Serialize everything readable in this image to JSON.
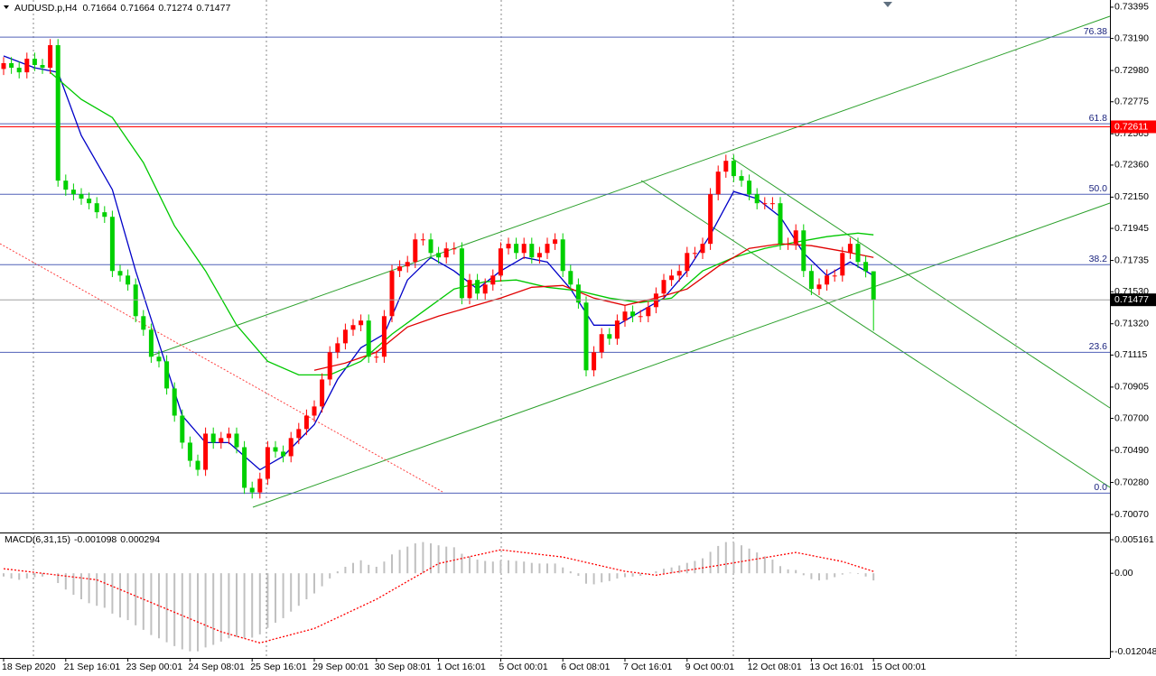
{
  "chart_data": [
    {
      "type": "candlestick",
      "title": "AUDUSD.p,H4",
      "categories": [
        "18 Sep 2020",
        null,
        null,
        null,
        null,
        null,
        null,
        null,
        "21 Sep 16:01",
        null,
        null,
        null,
        null,
        null,
        null,
        null,
        "23 Sep 00:01",
        null,
        null,
        null,
        null,
        null,
        null,
        null,
        "24 Sep 08:01",
        null,
        null,
        null,
        null,
        null,
        null,
        null,
        "25 Sep 16:01",
        null,
        null,
        null,
        null,
        null,
        null,
        null,
        "29 Sep 00:01",
        null,
        null,
        null,
        null,
        null,
        null,
        null,
        "30 Sep 08:01",
        null,
        null,
        null,
        null,
        null,
        null,
        null,
        "1 Oct 16:01",
        null,
        null,
        null,
        null,
        null,
        null,
        null,
        "5 Oct 00:01",
        null,
        null,
        null,
        null,
        null,
        null,
        null,
        "6 Oct 08:01",
        null,
        null,
        null,
        null,
        null,
        null,
        null,
        "7 Oct 16:01",
        null,
        null,
        null,
        null,
        null,
        null,
        null,
        "9 Oct 00:01",
        null,
        null,
        null,
        null,
        null,
        null,
        null,
        "12 Oct 08:01",
        null,
        null,
        null,
        null,
        null,
        null,
        null,
        "13 Oct 16:01",
        null,
        null,
        null,
        null,
        null,
        null,
        null,
        "15 Oct 00:01"
      ],
      "open": [
        0.7299,
        0.73028,
        0.72998,
        0.72968,
        0.73057,
        0.73016,
        0.72998,
        0.73146,
        0.72258,
        0.72199,
        0.72169,
        0.7214,
        0.7211,
        0.72051,
        0.72021,
        0.71666,
        0.71636,
        0.71577,
        0.7137,
        0.71281,
        0.71104,
        0.71074,
        0.70896,
        0.70718,
        0.70541,
        0.70422,
        0.70363,
        0.706,
        0.70541,
        0.70571,
        0.706,
        0.70511,
        0.70245,
        0.70215,
        0.70304,
        0.70511,
        0.70482,
        0.70452,
        0.70571,
        0.7063,
        0.70718,
        0.70778,
        0.70955,
        0.71133,
        0.71192,
        0.71281,
        0.71311,
        0.71341,
        0.71104,
        0.71104,
        0.7137,
        0.71666,
        0.71696,
        0.71725,
        0.71873,
        0.71873,
        0.71784,
        0.71755,
        0.71814,
        0.71814,
        0.71488,
        0.71607,
        0.71518,
        0.71577,
        0.71636,
        0.71814,
        0.71844,
        0.71784,
        0.71844,
        0.71755,
        0.71784,
        0.71844,
        0.71873,
        0.71666,
        0.71577,
        0.71459,
        0.71015,
        0.71133,
        0.71252,
        0.71222,
        0.71341,
        0.714,
        0.7137,
        0.7137,
        0.71429,
        0.71518,
        0.71607,
        0.71636,
        0.71666,
        0.71784,
        0.71784,
        0.71844,
        0.72169,
        0.72317,
        0.72388,
        0.72288,
        0.72258,
        0.72169,
        0.7211,
        0.7211,
        0.7211,
        0.71844,
        0.71844,
        0.71932,
        0.71666,
        0.71548,
        0.71577,
        0.71636,
        0.71636,
        0.71784,
        0.71844,
        0.71725,
        0.71664
      ],
      "high": [
        0.73068,
        0.73068,
        0.73038,
        0.73097,
        0.73097,
        0.73056,
        0.73186,
        0.73186,
        0.72298,
        0.72239,
        0.72209,
        0.7218,
        0.7215,
        0.72091,
        0.72061,
        0.71706,
        0.71676,
        0.71617,
        0.7141,
        0.71321,
        0.71144,
        0.71114,
        0.70936,
        0.70758,
        0.70581,
        0.70462,
        0.7064,
        0.7064,
        0.70611,
        0.7064,
        0.7064,
        0.70551,
        0.70285,
        0.70344,
        0.70551,
        0.70551,
        0.70522,
        0.70611,
        0.7067,
        0.70758,
        0.70818,
        0.70995,
        0.71173,
        0.71232,
        0.71321,
        0.71351,
        0.71381,
        0.71381,
        0.71144,
        0.7141,
        0.71706,
        0.71736,
        0.71765,
        0.71913,
        0.71913,
        0.71913,
        0.71824,
        0.71854,
        0.71854,
        0.71854,
        0.71647,
        0.71647,
        0.71617,
        0.71676,
        0.71854,
        0.71884,
        0.71884,
        0.71884,
        0.71884,
        0.71824,
        0.71884,
        0.71913,
        0.71913,
        0.71706,
        0.71617,
        0.71499,
        0.71173,
        0.71292,
        0.71292,
        0.71381,
        0.7144,
        0.7144,
        0.7141,
        0.71469,
        0.71558,
        0.71647,
        0.71676,
        0.71706,
        0.71824,
        0.71824,
        0.71884,
        0.72209,
        0.72357,
        0.72428,
        0.72428,
        0.72328,
        0.72298,
        0.72209,
        0.7215,
        0.7215,
        0.7215,
        0.71884,
        0.71972,
        0.71972,
        0.71706,
        0.71617,
        0.71676,
        0.71676,
        0.71824,
        0.71884,
        0.71884,
        0.71765,
        0.71664
      ],
      "low": [
        0.7295,
        0.72958,
        0.72928,
        0.72928,
        0.72976,
        0.72958,
        0.72958,
        0.72218,
        0.72159,
        0.72129,
        0.721,
        0.7207,
        0.72011,
        0.71981,
        0.71626,
        0.71596,
        0.71537,
        0.7133,
        0.71241,
        0.71064,
        0.71034,
        0.70856,
        0.70678,
        0.70501,
        0.70382,
        0.70323,
        0.70323,
        0.70501,
        0.70501,
        0.70531,
        0.70471,
        0.70205,
        0.70175,
        0.70175,
        0.70264,
        0.70442,
        0.70412,
        0.70412,
        0.70531,
        0.7059,
        0.70678,
        0.70738,
        0.70915,
        0.71093,
        0.71152,
        0.71241,
        0.71271,
        0.71064,
        0.71064,
        0.71064,
        0.7133,
        0.71626,
        0.71656,
        0.71685,
        0.71833,
        0.71744,
        0.71715,
        0.71715,
        0.71774,
        0.71448,
        0.71448,
        0.71478,
        0.71478,
        0.71537,
        0.71596,
        0.71774,
        0.71744,
        0.71744,
        0.71715,
        0.71715,
        0.71744,
        0.71804,
        0.71626,
        0.71537,
        0.71419,
        0.70975,
        0.70975,
        0.71093,
        0.71182,
        0.71182,
        0.71301,
        0.7133,
        0.7133,
        0.7133,
        0.71389,
        0.71478,
        0.71567,
        0.71596,
        0.71626,
        0.71744,
        0.71744,
        0.71804,
        0.72129,
        0.72277,
        0.72248,
        0.72218,
        0.72129,
        0.7207,
        0.7207,
        0.7207,
        0.71804,
        0.71804,
        0.71804,
        0.71626,
        0.71508,
        0.71508,
        0.71537,
        0.71596,
        0.71596,
        0.71744,
        0.71685,
        0.71624,
        0.71274
      ],
      "close": [
        0.73028,
        0.72998,
        0.72968,
        0.73057,
        0.73016,
        0.72998,
        0.73146,
        0.72258,
        0.72199,
        0.72169,
        0.7214,
        0.7211,
        0.72051,
        0.72021,
        0.71666,
        0.71636,
        0.71577,
        0.7137,
        0.71281,
        0.71104,
        0.71074,
        0.70896,
        0.70718,
        0.70541,
        0.70422,
        0.70363,
        0.706,
        0.70541,
        0.70571,
        0.706,
        0.70511,
        0.70245,
        0.70215,
        0.70304,
        0.70511,
        0.70482,
        0.70452,
        0.70571,
        0.7063,
        0.70718,
        0.70778,
        0.70955,
        0.71133,
        0.71192,
        0.71281,
        0.71311,
        0.71341,
        0.71104,
        0.71104,
        0.7137,
        0.71666,
        0.71696,
        0.71725,
        0.71873,
        0.71873,
        0.71784,
        0.71755,
        0.71814,
        0.71814,
        0.71488,
        0.71607,
        0.71518,
        0.71577,
        0.71636,
        0.71814,
        0.71844,
        0.71784,
        0.71844,
        0.71755,
        0.71784,
        0.71844,
        0.71873,
        0.71666,
        0.71577,
        0.71459,
        0.71015,
        0.71133,
        0.71252,
        0.71222,
        0.71341,
        0.714,
        0.7137,
        0.7137,
        0.71429,
        0.71518,
        0.71607,
        0.71636,
        0.71666,
        0.71784,
        0.71784,
        0.71844,
        0.72169,
        0.72317,
        0.72388,
        0.72288,
        0.72258,
        0.72169,
        0.7211,
        0.7211,
        0.7211,
        0.71844,
        0.71844,
        0.71932,
        0.71666,
        0.71548,
        0.71577,
        0.71636,
        0.71636,
        0.71784,
        0.71844,
        0.71725,
        0.71664,
        0.71477
      ],
      "up_color": "#ff0000",
      "down_color": "#00d000",
      "lines": [
        {
          "color": "#0000c8",
          "x": [
            0,
            4,
            7,
            10,
            14,
            17,
            20,
            23,
            26,
            29,
            33,
            36,
            40,
            43,
            46,
            49,
            52,
            55,
            58,
            61,
            64,
            67,
            70,
            73,
            76,
            79,
            82,
            85,
            88,
            91,
            94,
            97,
            100,
            103,
            106,
            109,
            112
          ],
          "values": [
            0.73075,
            0.72998,
            0.72968,
            0.72554,
            0.72199,
            0.71666,
            0.71192,
            0.70718,
            0.70541,
            0.70541,
            0.70363,
            0.70452,
            0.70659,
            0.70955,
            0.71163,
            0.71252,
            0.71607,
            0.71755,
            0.71666,
            0.71548,
            0.71666,
            0.71755,
            0.71725,
            0.71548,
            0.71311,
            0.71311,
            0.714,
            0.71488,
            0.71666,
            0.71903,
            0.72187,
            0.7214,
            0.72021,
            0.71784,
            0.71636,
            0.71725,
            0.71636
          ]
        },
        {
          "color": "#00c800",
          "x": [
            6,
            10,
            14,
            18,
            22,
            26,
            30,
            34,
            38,
            42,
            46,
            50,
            54,
            58,
            62,
            66,
            70,
            74,
            78,
            82,
            86,
            90,
            94,
            98,
            102,
            106,
            110,
            112
          ],
          "values": [
            0.72968,
            0.72791,
            0.72672,
            0.72376,
            0.71962,
            0.71666,
            0.71311,
            0.71074,
            0.70985,
            0.70985,
            0.71074,
            0.71252,
            0.714,
            0.71548,
            0.71595,
            0.71607,
            0.71559,
            0.71536,
            0.71488,
            0.71459,
            0.71488,
            0.71666,
            0.71755,
            0.71814,
            0.71855,
            0.71891,
            0.71914,
            0.71903
          ]
        },
        {
          "color": "#e00000",
          "x": [
            40,
            44,
            48,
            52,
            56,
            60,
            64,
            68,
            72,
            76,
            80,
            84,
            88,
            92,
            96,
            100,
            104,
            108,
            112
          ],
          "values": [
            0.71015,
            0.71062,
            0.71133,
            0.71299,
            0.7137,
            0.71429,
            0.71488,
            0.71559,
            0.71571,
            0.71488,
            0.71441,
            0.71488,
            0.71548,
            0.71696,
            0.71814,
            0.71844,
            0.71832,
            0.71796,
            0.71755
          ]
        }
      ],
      "fib_levels": [
        {
          "value": 0.73199,
          "label": "76.38"
        },
        {
          "value": 0.72631,
          "label": "61.8"
        },
        {
          "value": 0.72169,
          "label": "50.0"
        },
        {
          "value": 0.71707,
          "label": "38.2"
        },
        {
          "value": 0.71133,
          "label": "23.6"
        },
        {
          "value": 0.7021,
          "label": "0.0"
        }
      ],
      "fib_color": "#5060b8",
      "price_line": {
        "value": 0.72611,
        "color": "#ff0000"
      },
      "ylim": [
        0.69952,
        0.73442
      ],
      "yticks": [
        0.73395,
        {
          "value": 0.7319,
          "label": "0.73190"
        },
        {
          "value": 0.7298,
          "label": "0.72980"
        },
        0.72775,
        0.72565,
        {
          "value": 0.7236,
          "label": "0.72360"
        },
        {
          "value": 0.7215,
          "label": "0.72150"
        },
        0.71945,
        0.71735,
        {
          "value": 0.7153,
          "label": "0.71530"
        },
        {
          "value": 0.7132,
          "label": "0.71320"
        },
        0.71115,
        0.70905,
        {
          "value": 0.707,
          "label": "0.70700"
        },
        {
          "value": 0.7049,
          "label": "0.70490"
        },
        {
          "value": 0.7028,
          "label": "0.70280"
        },
        {
          "value": 0.7007,
          "label": "0.70070"
        }
      ]
    },
    {
      "type": "macd",
      "title": "MACD(6,31,15)",
      "values": [
        -0.0005,
        -0.0008,
        -0.001,
        -0.0008,
        -0.0006,
        -0.0005,
        0,
        -0.0015,
        -0.0025,
        -0.0033,
        -0.004,
        -0.0046,
        -0.005,
        -0.0053,
        -0.0062,
        -0.0068,
        -0.0072,
        -0.008,
        -0.0087,
        -0.0095,
        -0.01,
        -0.0106,
        -0.0112,
        -0.0117,
        -0.012,
        -0.012,
        -0.0114,
        -0.011,
        -0.0105,
        -0.01,
        -0.0098,
        -0.01,
        -0.0099,
        -0.0094,
        -0.0084,
        -0.0076,
        -0.0069,
        -0.0059,
        -0.005,
        -0.004,
        -0.0031,
        -0.002,
        -0.0008,
        0.0003,
        0.001,
        0.0016,
        0.002,
        0.0013,
        0.001,
        0.0018,
        0.0029,
        0.0036,
        0.0041,
        0.0046,
        0.0048,
        0.0046,
        0.0043,
        0.0041,
        0.004,
        0.003,
        0.0026,
        0.0021,
        0.0019,
        0.0018,
        0.002,
        0.002,
        0.0019,
        0.0018,
        0.0016,
        0.0015,
        0.0015,
        0.0015,
        0.0009,
        0.0003,
        -0.0004,
        -0.0016,
        -0.0017,
        -0.0014,
        -0.0012,
        -0.0008,
        -0.0006,
        -0.0005,
        -0.0004,
        -0.0001,
        0.0003,
        0.0007,
        0.0009,
        0.0012,
        0.0016,
        0.0019,
        0.0023,
        0.0033,
        0.0042,
        0.0048,
        0.0047,
        0.0043,
        0.0038,
        0.0032,
        0.0026,
        0.0021,
        0.0011,
        0.0006,
        0.0005,
        -0.0003,
        -0.0009,
        -0.0011,
        -0.001,
        -0.0006,
        -0.0002,
        0.0001,
        -0.0001,
        -0.0005,
        -0.001098
      ],
      "color": "#c0c0c0",
      "signal": {
        "color": "#ff0000",
        "x": [
          0,
          12,
          22,
          28,
          33,
          40,
          48,
          56,
          64,
          72,
          80,
          84,
          92,
          102,
          108,
          112
        ],
        "values": [
          0.0007,
          -0.001,
          -0.006,
          -0.009,
          -0.0107,
          -0.0085,
          -0.004,
          0.0015,
          0.0036,
          0.0025,
          0.0003,
          -0.0003,
          0.0012,
          0.0032,
          0.0018,
          0.000294
        ]
      },
      "ylim": [
        -0.013019,
        0.006132
      ],
      "yticks": [
        0.005161,
        {
          "value": 0,
          "label": "0.00"
        },
        -0.012048
      ]
    }
  ]
}
